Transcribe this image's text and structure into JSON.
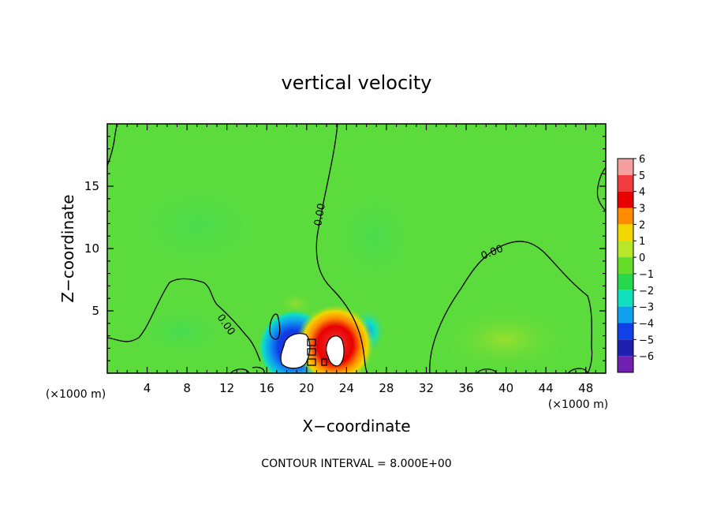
{
  "chart_data": {
    "type": "heatmap",
    "title": "vertical velocity",
    "xlabel": "X−coordinate",
    "ylabel": "Z−coordinate",
    "x_unit_left": "(×1000 m)",
    "x_unit_right": "(×1000 m)",
    "footer": "CONTOUR INTERVAL = 8.000E+00",
    "xlim": [
      0,
      50
    ],
    "ylim": [
      0,
      20
    ],
    "x_ticks": [
      4,
      8,
      12,
      16,
      20,
      24,
      28,
      32,
      36,
      40,
      44,
      48
    ],
    "x_tick_labels": [
      "4",
      "8",
      "12",
      "16",
      "20",
      "24",
      "28",
      "32",
      "36",
      "40",
      "44",
      "48"
    ],
    "y_ticks": [
      5,
      10,
      15
    ],
    "y_tick_labels": [
      "5",
      "10",
      "15"
    ],
    "contour_labels": [
      "0.00",
      "0.00",
      "0.00"
    ],
    "colorbar": {
      "levels": [
        6,
        5,
        4,
        3,
        2,
        1,
        0,
        -1,
        -2,
        -3,
        -4,
        -5,
        -6
      ],
      "labels": [
        "6",
        "5",
        "4",
        "3",
        "2",
        "1",
        "0",
        "−1",
        "−2",
        "−3",
        "−4",
        "−5",
        "−6"
      ],
      "colors": [
        "#f4a0a0",
        "#f03c3c",
        "#e80000",
        "#ff8c00",
        "#f0d800",
        "#b8e628",
        "#64dc28",
        "#28d84c",
        "#10e0c0",
        "#10a0f0",
        "#1040e8",
        "#2020b0",
        "#7020b0"
      ]
    },
    "background_color": "#5cdc3c",
    "features": [
      {
        "kind": "updraft",
        "x_center": 22.8,
        "z_center": 2.2,
        "peak": 6
      },
      {
        "kind": "downdraft",
        "x_center": 18.7,
        "z_center": 1.9,
        "peak": -6
      },
      {
        "kind": "weak_downdraft",
        "x_center": 26,
        "z_center": 3.2,
        "peak": -2
      },
      {
        "kind": "weak_updraft",
        "x_center": 40,
        "z_center": 3.5,
        "peak": 1
      }
    ]
  }
}
